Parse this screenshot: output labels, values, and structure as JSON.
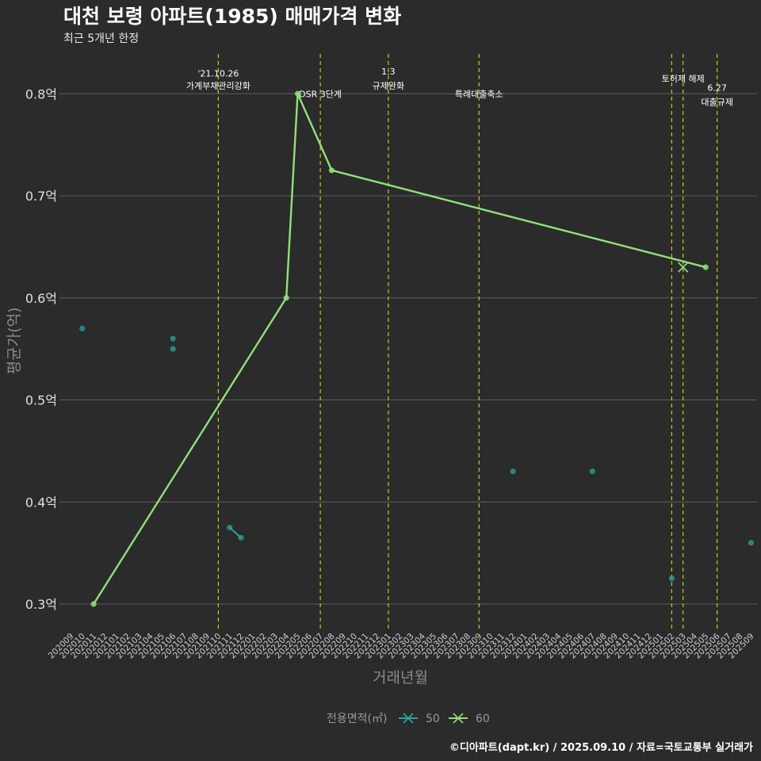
{
  "chart_data": {
    "type": "line",
    "title": "대천 보령 아파트(1985) 매매가격 변화",
    "subtitle": "최근 5개년 한정",
    "xlabel": "거래년월",
    "ylabel": "평균가(억)",
    "caption": "©디아파트(dapt.kr) / 2025.09.10 / 자료=국토교통부 실거래가",
    "y_ticks": [
      0.3,
      0.4,
      0.5,
      0.6,
      0.7,
      0.8
    ],
    "y_tick_labels": [
      "0.3억",
      "0.4억",
      "0.5억",
      "0.6억",
      "0.7억",
      "0.8억"
    ],
    "ylim": [
      0.275,
      0.83
    ],
    "categories": [
      "202009",
      "202010",
      "202011",
      "202012",
      "202101",
      "202102",
      "202103",
      "202104",
      "202105",
      "202106",
      "202107",
      "202108",
      "202109",
      "202110",
      "202111",
      "202112",
      "202201",
      "202202",
      "202203",
      "202204",
      "202205",
      "202206",
      "202207",
      "202208",
      "202209",
      "202210",
      "202211",
      "202212",
      "202301",
      "202302",
      "202303",
      "202304",
      "202305",
      "202306",
      "202307",
      "202308",
      "202309",
      "202310",
      "202311",
      "202312",
      "202401",
      "202402",
      "202403",
      "202404",
      "202405",
      "202406",
      "202407",
      "202408",
      "202409",
      "202410",
      "202411",
      "202412",
      "202501",
      "202502",
      "202503",
      "202504",
      "202505",
      "202506",
      "202507",
      "202508",
      "202509"
    ],
    "legend": {
      "title": "전용면적(㎡)",
      "entries": [
        {
          "name": "50",
          "color": "#2aa6a0"
        },
        {
          "name": "60",
          "color": "#90e07a"
        }
      ]
    },
    "series": [
      {
        "name": "50",
        "color": "#2aa6a0",
        "points": [
          {
            "x": "202010",
            "y": 0.57
          },
          {
            "x": "202106",
            "y": 0.56
          },
          {
            "x": "202106",
            "y": 0.55
          },
          {
            "x": "202111",
            "y": 0.375
          },
          {
            "x": "202112",
            "y": 0.365
          },
          {
            "x": "202312",
            "y": 0.43
          },
          {
            "x": "202407",
            "y": 0.43
          },
          {
            "x": "202502",
            "y": 0.325
          },
          {
            "x": "202509",
            "y": 0.36
          }
        ],
        "line_segments": [
          [
            "202111",
            "202112"
          ]
        ]
      },
      {
        "name": "60",
        "color": "#90e07a",
        "points": [
          {
            "x": "202011",
            "y": 0.3
          },
          {
            "x": "202204",
            "y": 0.6
          },
          {
            "x": "202205",
            "y": 0.8
          },
          {
            "x": "202208",
            "y": 0.725
          },
          {
            "x": "202505",
            "y": 0.63
          }
        ],
        "cross_marker": {
          "x": "202503",
          "y": 0.63
        }
      }
    ],
    "events": [
      {
        "x": "202110",
        "lines": [
          "'21.10.26",
          "가계부채관리강화"
        ],
        "label_y": [
          0.82,
          0.808
        ]
      },
      {
        "x": "202207",
        "lines": [
          "DSR 3단계"
        ],
        "label_y": [
          0.8
        ]
      },
      {
        "x": "202301",
        "lines": [
          "1.3",
          "규제완화"
        ],
        "label_y": [
          0.822,
          0.808
        ]
      },
      {
        "x": "202309",
        "lines": [
          "특례대출축소"
        ],
        "label_y": [
          0.8
        ]
      },
      {
        "x": "202502",
        "lines": [],
        "label_y": []
      },
      {
        "x": "202503",
        "lines": [
          "토허제 해제"
        ],
        "label_y": [
          0.815
        ]
      },
      {
        "x": "202506",
        "lines": [
          "6.27",
          "대출규제"
        ],
        "label_y": [
          0.806,
          0.792
        ]
      }
    ]
  }
}
